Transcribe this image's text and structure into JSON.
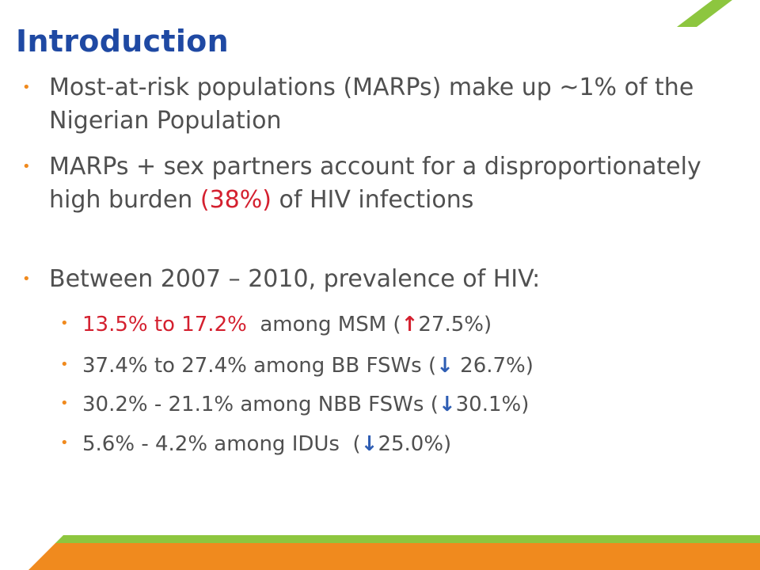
{
  "slide": {
    "title": "Introduction",
    "colors": {
      "title": "#1f49a3",
      "body_text": "#505050",
      "highlight": "#d4202f",
      "bullet": "#f08a1e",
      "accent_green": "#8dc63f",
      "accent_orange": "#f08a1e",
      "arrow_down": "#2e5db3"
    }
  },
  "bullets": [
    {
      "text": "Most-at-risk populations (MARPs) make up ~1% of the Nigerian Population"
    },
    {
      "text_before": "MARPs + sex partners account for a disproportionately high burden ",
      "highlight": "(38%)",
      "text_after": " of HIV infections"
    },
    {
      "text": "Between 2007 – 2010, prevalence of HIV:"
    }
  ],
  "sub_bullets": [
    {
      "range": "13.5% to 17.2%",
      "rest": "  among MSM (",
      "arrow": "up-arrow",
      "change": "27.5%)"
    },
    {
      "range": "37.4% to 27.4% among BB FSWs (",
      "arrow": "down-arrow",
      "change": " 26.7%)"
    },
    {
      "range": "30.2% - 21.1% among NBB FSWs (",
      "arrow": "down-arrow",
      "change": "30.1%)"
    },
    {
      "range": "5.6% - 4.2% among IDUs  (",
      "arrow": "down-arrow",
      "change": "25.0%)"
    }
  ]
}
